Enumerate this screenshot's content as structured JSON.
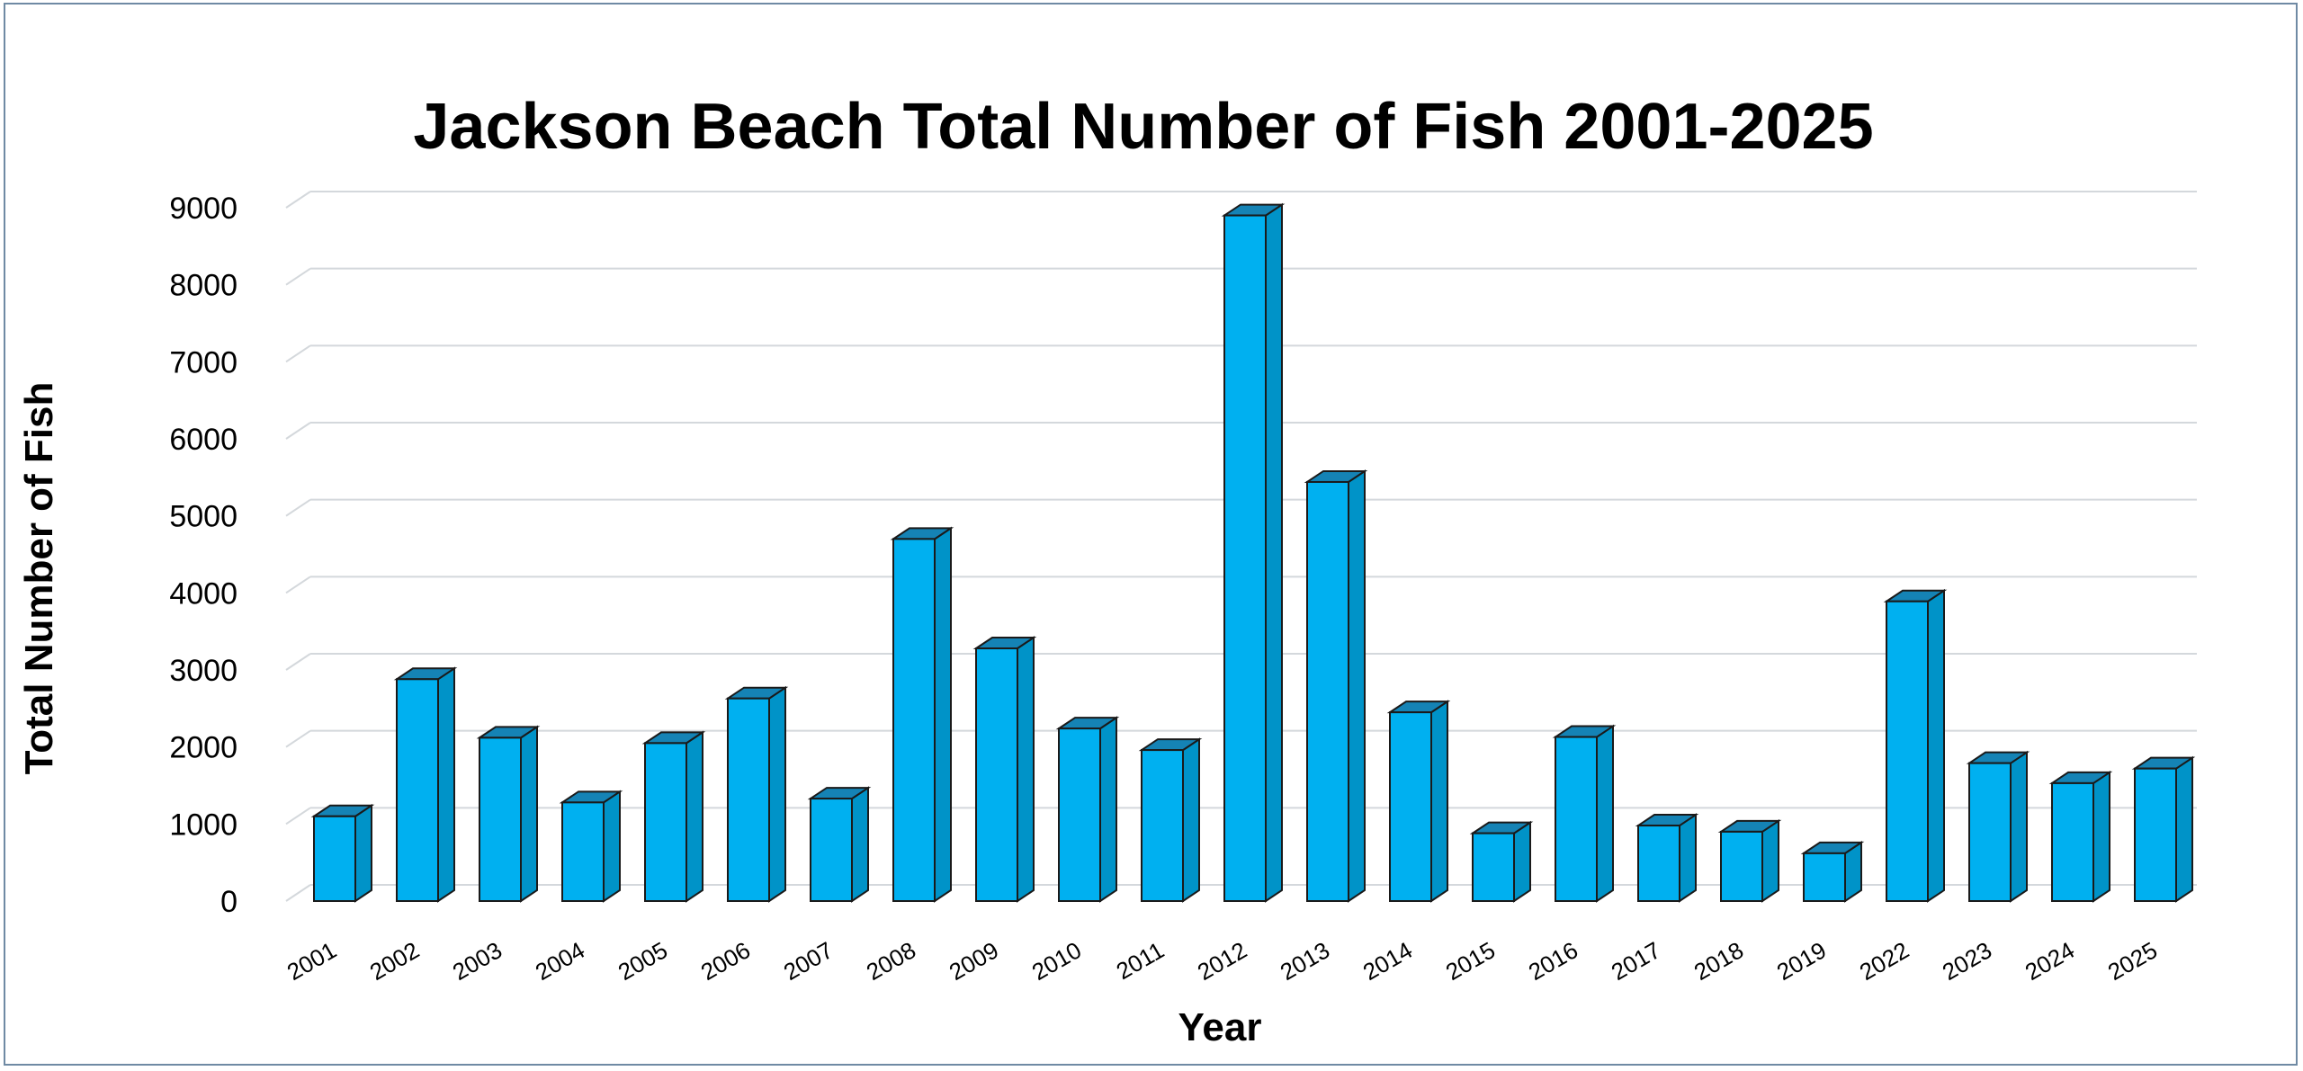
{
  "chart_data": {
    "type": "bar",
    "title": "Jackson Beach Total Number of Fish 2001-2025",
    "xlabel": "Year",
    "ylabel": "Total Number of Fish",
    "categories": [
      "2001",
      "2002",
      "2003",
      "2004",
      "2005",
      "2006",
      "2007",
      "2008",
      "2009",
      "2010",
      "2011",
      "2012",
      "2013",
      "2014",
      "2015",
      "2016",
      "2017",
      "2018",
      "2019",
      "2022",
      "2023",
      "2024",
      "2025"
    ],
    "values": [
      1100,
      2880,
      2120,
      1280,
      2050,
      2630,
      1330,
      4700,
      3280,
      2240,
      1960,
      8900,
      5440,
      2450,
      880,
      2130,
      980,
      900,
      620,
      3890,
      1790,
      1530,
      1720
    ],
    "ylim": [
      0,
      9000
    ],
    "yticks": [
      0,
      1000,
      2000,
      3000,
      4000,
      5000,
      6000,
      7000,
      8000,
      9000
    ],
    "grid": true,
    "legend": "none",
    "colors": {
      "bar_front": "#00b0f0",
      "bar_side": "#0093c8",
      "bar_top": "#1583b5",
      "bar_outline": "#1a1a1a"
    }
  }
}
